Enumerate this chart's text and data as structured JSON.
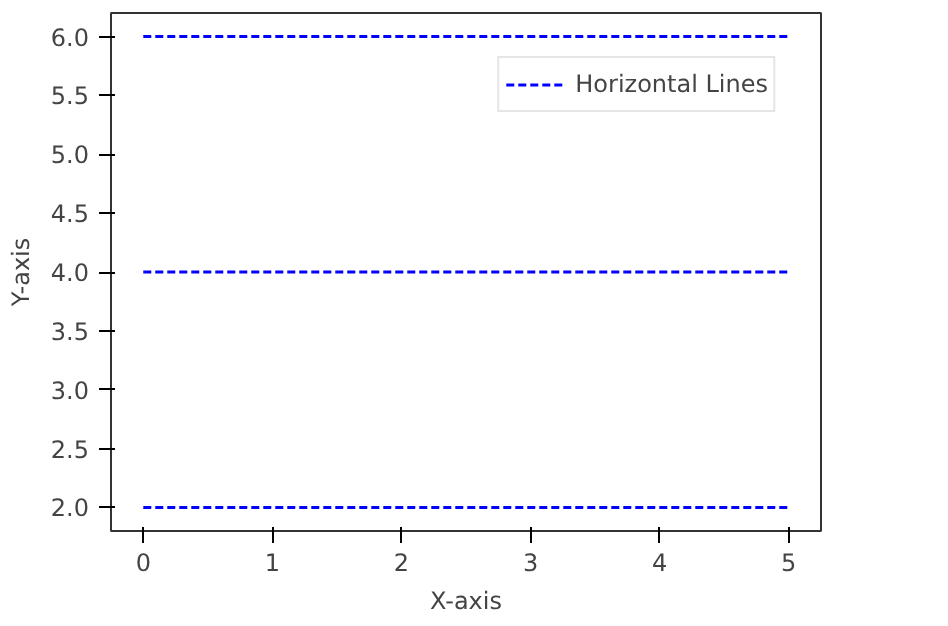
{
  "chart_data": {
    "type": "line",
    "xlabel": "X-axis",
    "ylabel": "Y-axis",
    "series": [
      {
        "name": "Horizontal Lines",
        "color": "#0000ff",
        "values": [
          2,
          2
        ]
      },
      {
        "color": "#0000ff",
        "values": [
          4,
          4
        ]
      },
      {
        "color": "#0000ff",
        "values": [
          6,
          6
        ]
      }
    ],
    "x": [
      0,
      5
    ],
    "line_style": "dashed",
    "marker": "none",
    "legend": "top right",
    "grid": false,
    "xlim": [
      -0.25,
      5.25
    ],
    "ylim": [
      1.8,
      6.2
    ],
    "xticks": [
      0,
      1,
      2,
      3,
      4,
      5
    ],
    "yticks": [
      {
        "value": 2,
        "label": "2.0"
      },
      {
        "value": 2.5,
        "label": "2.5"
      },
      {
        "value": 3,
        "label": "3.0"
      },
      {
        "value": 3.5,
        "label": "3.5"
      },
      {
        "value": 4,
        "label": "4.0"
      },
      {
        "value": 4.5,
        "label": "4.5"
      },
      {
        "value": 5,
        "label": "5.0"
      },
      {
        "value": 5.5,
        "label": "5.5"
      },
      {
        "value": 6,
        "label": "6.0"
      }
    ]
  }
}
